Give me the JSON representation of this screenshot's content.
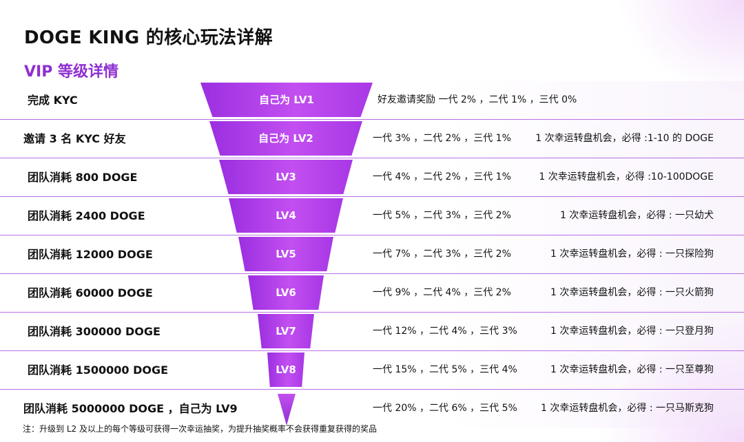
{
  "title": "DOGE KING 的核心玩法详解",
  "subtitle": "VIP 等级详情",
  "rows": [
    {
      "condition": "完成 KYC",
      "level": "自己为 LV1",
      "reward": "好友邀请奖励 一代 2% ，二代 1% ，三代 0%",
      "bonus": ""
    },
    {
      "condition": "邀请 3 名 KYC 好友",
      "level": "自己为 LV2",
      "reward": "一代 3% ，二代 2% ，三代 1%",
      "bonus": "1 次幸运转盘机会，必得 :1-10 的 DOGE"
    },
    {
      "condition": "团队消耗 800 DOGE",
      "level": "LV3",
      "reward": "一代 4% ，二代 2% ，三代 1%",
      "bonus": "1 次幸运转盘机会，必得 :10-100DOGE"
    },
    {
      "condition": "团队消耗 2400 DOGE",
      "level": "LV4",
      "reward": "一代 5% ，二代 3% ，三代 2%",
      "bonus": "1 次幸运转盘机会，必得 : 一只幼犬"
    },
    {
      "condition": "团队消耗 12000 DOGE",
      "level": "LV5",
      "reward": "一代 7% ，二代 3% ，三代 2%",
      "bonus": "1 次幸运转盘机会，必得 : 一只探险狗"
    },
    {
      "condition": "团队消耗 60000 DOGE",
      "level": "LV6",
      "reward": "一代 9% ，二代 4% ，三代 2%",
      "bonus": "1 次幸运转盘机会，必得 : 一只火箭狗"
    },
    {
      "condition": "团队消耗 300000 DOGE",
      "level": "LV7",
      "reward": "一代 12% ，二代 4% ，三代 3%",
      "bonus": "1 次幸运转盘机会，必得 : 一只登月狗"
    },
    {
      "condition": "团队消耗 1500000 DOGE",
      "level": "LV8",
      "reward": "一代 15% ，二代 5% ，三代 4%",
      "bonus": "1 次幸运转盘机会，必得 : 一只至尊狗"
    },
    {
      "condition": "团队消耗 5000000 DOGE ，自己为 LV9",
      "level": "",
      "reward": "一代 20% ，二代 6% ，三代 5%",
      "bonus": "1 次幸运转盘机会，必得 : 一只马斯克狗"
    }
  ],
  "note": "注：升级到 L2 及以上的每个等级可获得一次幸运抽奖，为提升抽奖概率不会获得重复获得的奖品",
  "colors": {
    "accent": "#8e2fd1",
    "funnel": "#b63fe8",
    "divider": "#b96ee4"
  }
}
